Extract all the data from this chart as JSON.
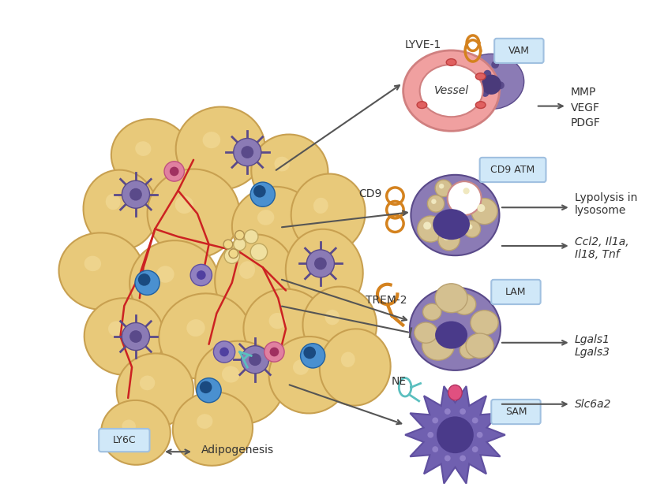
{
  "fig_width": 8.22,
  "fig_height": 6.23,
  "bg_color": "#ffffff",
  "colors": {
    "adipocyte_fill": "#e8c97a",
    "adipocyte_outline": "#c8a050",
    "macrophage_body": "#8b7bb5",
    "macrophage_dark": "#5a4a8a",
    "vessel_ring": "#f0a0a0",
    "vessel_fill": "#ffffff",
    "blood_red": "#cc2222",
    "lipid_droplet": "#d4c090",
    "lipid_outline": "#b8a070",
    "blue_nucleus": "#4a90d0",
    "orange_marker": "#d4821e",
    "cyan_marker": "#5bbfbf",
    "pink_marker": "#e080a0",
    "arrow_color": "#555555",
    "label_box_fill": "#d0e8f8",
    "label_box_edge": "#a0c0e0",
    "text_color": "#333333",
    "sam_body": "#7060b0",
    "sam_spike": "#6050a0"
  },
  "labels": {
    "lyve1": "LYVE-1",
    "cd9": "CD9",
    "trem2": "TREM-2",
    "ne": "NE",
    "vessel": "Vessel",
    "vam": "VAM",
    "cd9atm": "CD9 ATM",
    "lam": "LAM",
    "sam": "SAM",
    "ly6c": "LY6C",
    "adipogenesis": "Adipogenesis",
    "mmp": "MMP",
    "vegf": "VEGF",
    "pdgf": "PDGF",
    "lypolysis": "Lypolysis in\nlysosome",
    "ccl2": "Ccl2, Il1a,\nIl18, Tnf",
    "lgals1": "Lgals1\nLgals3",
    "slc6a2": "Slc6a2"
  }
}
